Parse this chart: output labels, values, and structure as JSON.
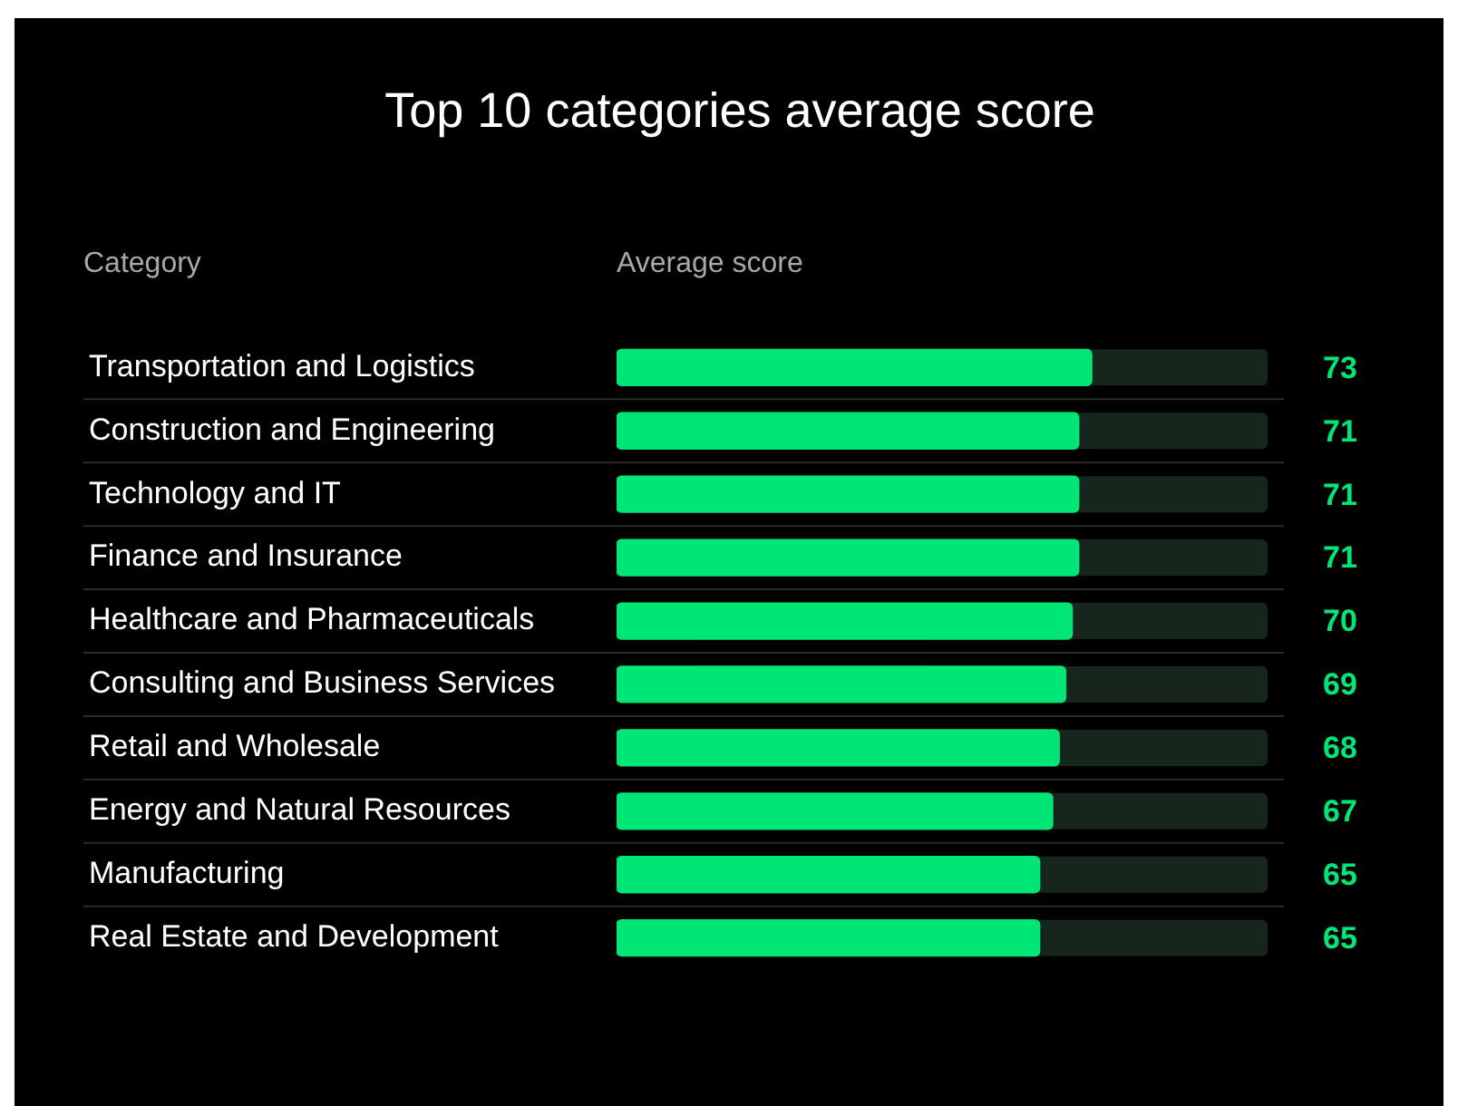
{
  "chart_data": {
    "type": "bar",
    "orientation": "horizontal",
    "title": "Top 10 categories average score",
    "ylabel": "Category",
    "xlabel": "Average score",
    "categories": [
      "Transportation and Logistics",
      "Construction and Engineering",
      "Technology and IT",
      "Finance and Insurance",
      "Healthcare and Pharmaceuticals",
      "Consulting and Business Services",
      "Retail and Wholesale",
      "Energy and Natural Resources",
      "Manufacturing",
      "Real Estate and Development"
    ],
    "values": [
      73,
      71,
      71,
      71,
      70,
      69,
      68,
      67,
      65,
      65
    ],
    "color": "#00e676",
    "xlim": [
      0,
      100
    ],
    "tick_labels": "y",
    "legend": false,
    "data_labels": true
  }
}
